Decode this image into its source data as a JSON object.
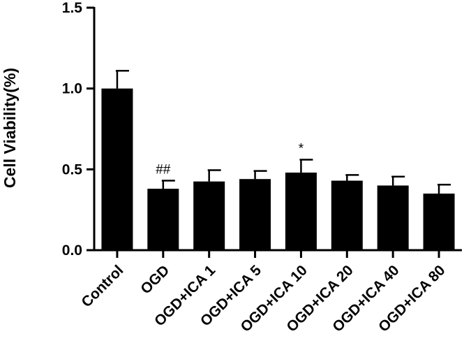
{
  "chart_data": {
    "type": "bar",
    "ylabel": "Cell Viability(%)",
    "xlabel": "",
    "title": "",
    "ylim": [
      0,
      1.5
    ],
    "yticks": [
      "0.0",
      "0.5",
      "1.0",
      "1.5"
    ],
    "categories": [
      "Control",
      "OGD",
      "OGD+ICA 1",
      "OGD+ICA 5",
      "OGD+ICA 10",
      "OGD+ICA 20",
      "OGD+ICA 40",
      "OGD+ICA 80"
    ],
    "values": [
      1.0,
      0.38,
      0.425,
      0.44,
      0.48,
      0.43,
      0.4,
      0.35
    ],
    "errors": [
      0.11,
      0.05,
      0.07,
      0.05,
      0.08,
      0.035,
      0.055,
      0.055
    ],
    "annotations": [
      "",
      "##",
      "",
      "",
      "*",
      "",
      "",
      ""
    ],
    "bar_color": "#000000",
    "grid": false
  }
}
